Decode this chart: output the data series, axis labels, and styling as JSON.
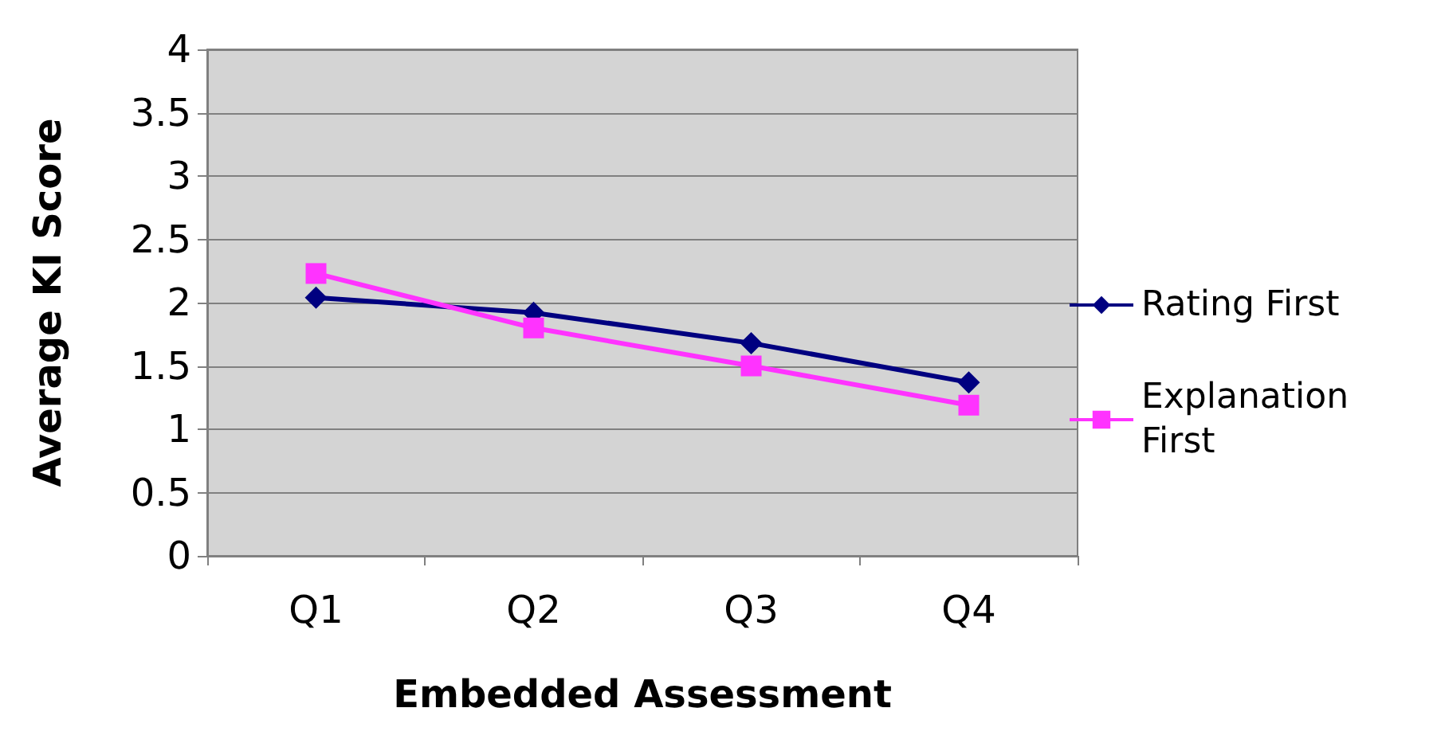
{
  "chart_data": {
    "type": "line",
    "xlabel": "Embedded Assessment",
    "ylabel": "Average KI Score",
    "categories": [
      "Q1",
      "Q2",
      "Q3",
      "Q4"
    ],
    "series": [
      {
        "name": "Rating First",
        "color": "#000080",
        "marker": "diamond",
        "values": [
          2.04,
          1.92,
          1.68,
          1.37
        ]
      },
      {
        "name": "Explanation First",
        "color": "#ff33ff",
        "marker": "square",
        "values": [
          2.23,
          1.8,
          1.5,
          1.19
        ]
      }
    ],
    "ylim": [
      0,
      4
    ],
    "yticks": [
      0,
      0.5,
      1,
      1.5,
      2,
      2.5,
      3,
      3.5,
      4
    ],
    "grid": "y",
    "legend": "right",
    "line_style": "solid"
  }
}
